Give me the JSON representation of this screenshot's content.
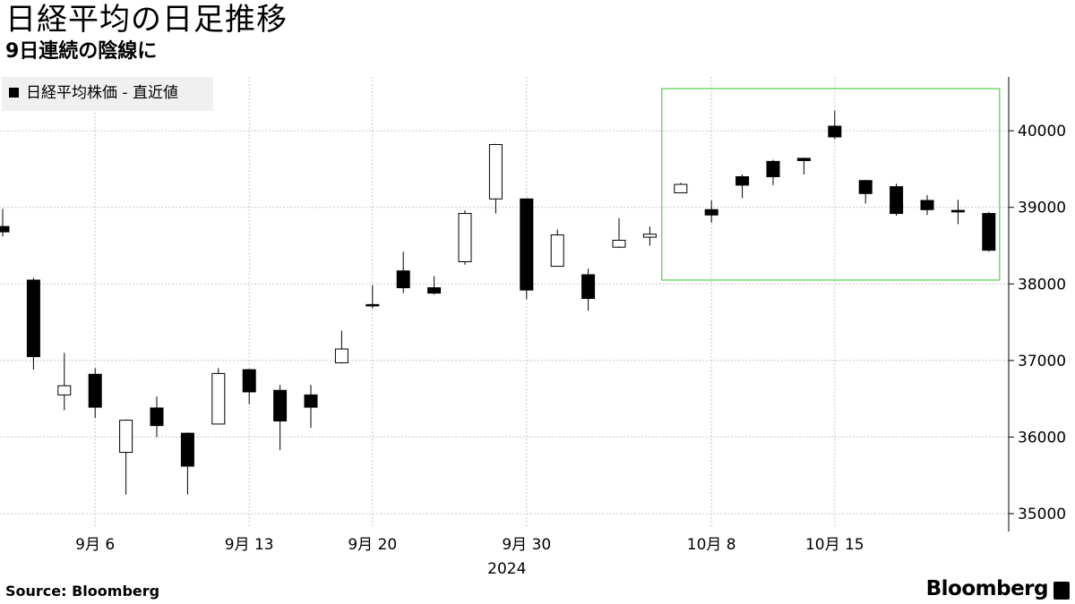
{
  "header": {
    "title": "日経平均の日足推移",
    "subtitle": "9日連続の陰線に"
  },
  "legend": {
    "label": "日経平均株価 - 直近値"
  },
  "footer": {
    "source": "Source:  Bloomberg",
    "brand": "Bloomberg"
  },
  "colors": {
    "candle_down": "#000000",
    "candle_up": "#ffffff",
    "grid": "#c8c8c8",
    "highlight_box": "#4cd44c",
    "legend_bg": "#f0f0f0"
  },
  "chart_data": {
    "type": "candlestick",
    "ylim": [
      34800,
      40700
    ],
    "yticks": [
      35000,
      36000,
      37000,
      38000,
      39000,
      40000
    ],
    "xticks": [
      {
        "label": "9月 6",
        "index": 3
      },
      {
        "label": "9月 13",
        "index": 8
      },
      {
        "label": "9月 20",
        "index": 12
      },
      {
        "label": "9月 30",
        "index": 17
      },
      {
        "label": "10月 8",
        "index": 23
      },
      {
        "label": "10月 15",
        "index": 27
      }
    ],
    "year_label": {
      "label": "2024",
      "index": 17
    },
    "highlight_range": {
      "start_index": 22,
      "end_index": 31,
      "low": 38050,
      "high": 40550
    },
    "candles": [
      {
        "o": 38750,
        "h": 38980,
        "l": 38620,
        "c": 38680
      },
      {
        "o": 38050,
        "h": 38080,
        "l": 36880,
        "c": 37050
      },
      {
        "o": 36550,
        "h": 37100,
        "l": 36350,
        "c": 36670
      },
      {
        "o": 36820,
        "h": 36900,
        "l": 36250,
        "c": 36390
      },
      {
        "o": 35800,
        "h": 36230,
        "l": 35250,
        "c": 36220
      },
      {
        "o": 36380,
        "h": 36530,
        "l": 36000,
        "c": 36150
      },
      {
        "o": 36050,
        "h": 36060,
        "l": 35250,
        "c": 35620
      },
      {
        "o": 36170,
        "h": 36900,
        "l": 36170,
        "c": 36830
      },
      {
        "o": 36880,
        "h": 36890,
        "l": 36430,
        "c": 36590
      },
      {
        "o": 36610,
        "h": 36680,
        "l": 35830,
        "c": 36210
      },
      {
        "o": 36550,
        "h": 36680,
        "l": 36120,
        "c": 36390
      },
      {
        "o": 36970,
        "h": 37390,
        "l": 36960,
        "c": 37150
      },
      {
        "o": 37730,
        "h": 37980,
        "l": 37680,
        "c": 37720
      },
      {
        "o": 38170,
        "h": 38420,
        "l": 37880,
        "c": 37950
      },
      {
        "o": 37950,
        "h": 38100,
        "l": 37860,
        "c": 37880
      },
      {
        "o": 38290,
        "h": 38960,
        "l": 38250,
        "c": 38920
      },
      {
        "o": 39110,
        "h": 39830,
        "l": 38920,
        "c": 39820
      },
      {
        "o": 39110,
        "h": 39120,
        "l": 37800,
        "c": 37920
      },
      {
        "o": 38230,
        "h": 38710,
        "l": 38230,
        "c": 38640
      },
      {
        "o": 38120,
        "h": 38200,
        "l": 37650,
        "c": 37810
      },
      {
        "o": 38480,
        "h": 38860,
        "l": 38470,
        "c": 38570
      },
      {
        "o": 38610,
        "h": 38750,
        "l": 38500,
        "c": 38650
      },
      {
        "o": 39190,
        "h": 39320,
        "l": 39190,
        "c": 39300
      },
      {
        "o": 38970,
        "h": 39090,
        "l": 38800,
        "c": 38900
      },
      {
        "o": 39400,
        "h": 39430,
        "l": 39120,
        "c": 39290
      },
      {
        "o": 39600,
        "h": 39620,
        "l": 39290,
        "c": 39400
      },
      {
        "o": 39640,
        "h": 39650,
        "l": 39430,
        "c": 39610
      },
      {
        "o": 40060,
        "h": 40260,
        "l": 39890,
        "c": 39920
      },
      {
        "o": 39350,
        "h": 39360,
        "l": 39050,
        "c": 39180
      },
      {
        "o": 39270,
        "h": 39310,
        "l": 38890,
        "c": 38920
      },
      {
        "o": 39090,
        "h": 39160,
        "l": 38900,
        "c": 38970
      },
      {
        "o": 38960,
        "h": 39100,
        "l": 38780,
        "c": 38940
      },
      {
        "o": 38920,
        "h": 38940,
        "l": 38420,
        "c": 38440
      }
    ]
  }
}
